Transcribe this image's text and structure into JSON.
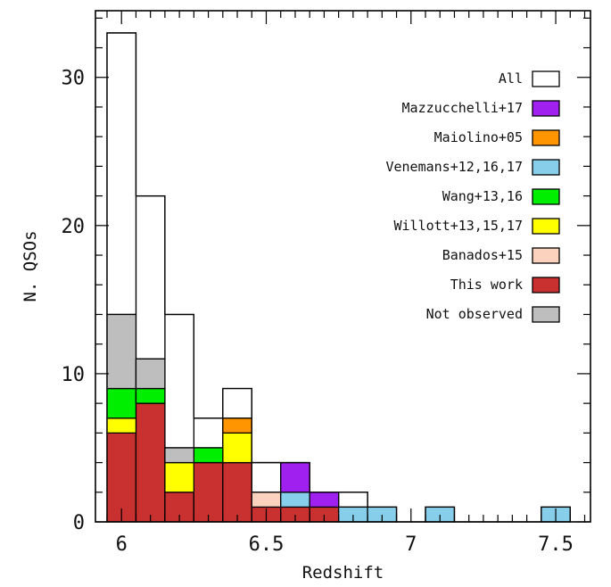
{
  "chart_data": {
    "type": "bar",
    "subtype": "stacked-histogram",
    "xlabel": "Redshift",
    "ylabel": "N. QSOs",
    "xlim": [
      5.91,
      7.62
    ],
    "ylim": [
      0,
      34.5
    ],
    "x_ticks": [
      6,
      6.5,
      7,
      7.5
    ],
    "x_tick_labels": [
      "6",
      "6.5",
      "7",
      "7.5"
    ],
    "y_ticks": [
      0,
      10,
      20,
      30
    ],
    "y_tick_labels": [
      "0",
      "10",
      "20",
      "30"
    ],
    "bin_edges": [
      5.95,
      6.05,
      6.15,
      6.25,
      6.35,
      6.45,
      6.55,
      6.65,
      6.75,
      6.85,
      6.95,
      7.05,
      7.15,
      7.25,
      7.35,
      7.45,
      7.55
    ],
    "legend_position": "right",
    "series": [
      {
        "name": "This work",
        "color": "#c8312f",
        "values": [
          6,
          8,
          2,
          4,
          4,
          1,
          1,
          1,
          0,
          0,
          0,
          0,
          0,
          0,
          0,
          0
        ]
      },
      {
        "name": "Banados+15",
        "color": "#fad2bd",
        "values": [
          0,
          0,
          0,
          0,
          0,
          1,
          0,
          0,
          0,
          0,
          0,
          0,
          0,
          0,
          0,
          0
        ]
      },
      {
        "name": "Willott+13,15,17",
        "color": "#ffff00",
        "values": [
          1,
          0,
          2,
          0,
          2,
          0,
          0,
          0,
          0,
          0,
          0,
          0,
          0,
          0,
          0,
          0
        ]
      },
      {
        "name": "Wang+13,16",
        "color": "#00ee00",
        "values": [
          2,
          1,
          0,
          1,
          0,
          0,
          0,
          0,
          0,
          0,
          0,
          0,
          0,
          0,
          0,
          0
        ]
      },
      {
        "name": "Venemans+12,16,17",
        "color": "#87ceeb",
        "values": [
          0,
          0,
          0,
          0,
          0,
          0,
          1,
          0,
          1,
          1,
          0,
          1,
          0,
          0,
          0,
          1
        ]
      },
      {
        "name": "Maiolino+05",
        "color": "#ff9500",
        "values": [
          0,
          0,
          0,
          0,
          1,
          0,
          0,
          0,
          0,
          0,
          0,
          0,
          0,
          0,
          0,
          0
        ]
      },
      {
        "name": "Mazzucchelli+17",
        "color": "#a020f0",
        "values": [
          0,
          0,
          0,
          0,
          0,
          0,
          2,
          1,
          0,
          0,
          0,
          0,
          0,
          0,
          0,
          0
        ]
      },
      {
        "name": "Not observed",
        "color": "#bebebe",
        "values": [
          5,
          2,
          1,
          0,
          0,
          0,
          0,
          0,
          0,
          0,
          0,
          0,
          0,
          0,
          0,
          0
        ]
      }
    ],
    "all": {
      "name": "All",
      "color": "#ffffff",
      "values": [
        33,
        22,
        14,
        7,
        9,
        4,
        4,
        2,
        2,
        1,
        0,
        1,
        0,
        0,
        0,
        1
      ]
    },
    "legend_order": [
      "All",
      "Mazzucchelli+17",
      "Maiolino+05",
      "Venemans+12,16,17",
      "Wang+13,16",
      "Willott+13,15,17",
      "Banados+15",
      "This work",
      "Not observed"
    ]
  }
}
